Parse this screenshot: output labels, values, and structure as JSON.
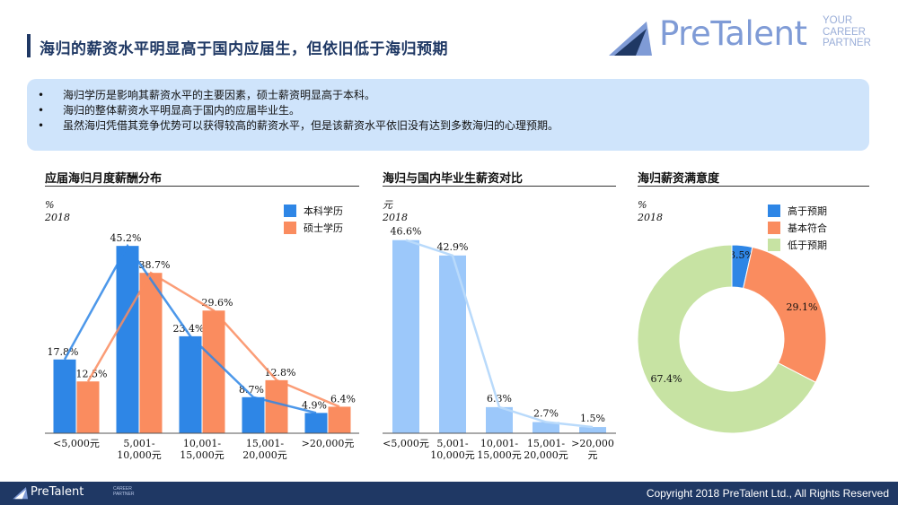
{
  "header": {
    "title": "海归的薪资水平明显高于国内应届生，但依旧低于海归预期",
    "logo_text": "PreTalent",
    "logo_tagline": [
      "YOUR",
      "CAREER",
      "PARTNER"
    ]
  },
  "summary": {
    "bullets": [
      "海归学历是影响其薪资水平的主要因素，硕士薪资明显高于本科。",
      "海归的整体薪资水平明显高于国内的应届毕业生。",
      "虽然海归凭借其竞争优势可以获得较高的薪资水平，但是该薪资水平依旧没有达到多数海归的心理预期。"
    ]
  },
  "colors": {
    "brand": "#1f3864",
    "logo": "#7f9bd6",
    "summary_bg": "#cfe4fb",
    "bachelor": "#2e86e6",
    "master": "#fa8c5f",
    "domestic_bar": "#9cc8fa",
    "domestic_line": "#b9dafb",
    "donut_high": "#2e86e6",
    "donut_match": "#fa8c5f",
    "donut_low": "#c7e3a3"
  },
  "chart_data": [
    {
      "type": "bar",
      "title": "应届海归月度薪酬分布",
      "unit": "%",
      "year": "2018",
      "categories": [
        "<5,000元",
        "5,001-\n10,000元",
        "10,001-\n15,000元",
        "15,001-\n20,000元",
        ">20,000元"
      ],
      "series": [
        {
          "name": "本科学历",
          "values": [
            17.8,
            45.2,
            23.4,
            8.7,
            4.9
          ],
          "labels": [
            "17.8%",
            "45.2%",
            "23.4%",
            "8.7%",
            "4.9%"
          ],
          "color": "#2e86e6"
        },
        {
          "name": "硕士学历",
          "values": [
            12.5,
            38.7,
            29.6,
            12.8,
            6.4
          ],
          "labels": [
            "12.5%",
            "38.7%",
            "29.6%",
            "12.8%",
            "6.4%"
          ],
          "color": "#fa8c5f"
        }
      ],
      "overlay": "line",
      "ylim": [
        0,
        50
      ],
      "legend": "top-right",
      "grid": false
    },
    {
      "type": "bar",
      "title": "海归与国内毕业生薪资对比",
      "unit": "元",
      "year": "2018",
      "categories": [
        "<5,000元",
        "5,001-\n10,000元",
        "10,001-\n15,000元",
        "15,001-\n20,000元",
        ">20,000\n元"
      ],
      "values": [
        46.6,
        42.9,
        6.3,
        2.7,
        1.5
      ],
      "labels": [
        "46.6%",
        "42.9%",
        "6.3%",
        "2.7%",
        "1.5%"
      ],
      "overlay": "line",
      "ylim": [
        0,
        50
      ],
      "grid": false
    },
    {
      "type": "pie",
      "donut": true,
      "title": "海归薪资满意度",
      "unit": "%",
      "year": "2018",
      "slices": [
        {
          "name": "高于预期",
          "value": 3.5,
          "label": "3.5%",
          "color": "#2e86e6"
        },
        {
          "name": "基本符合",
          "value": 29.1,
          "label": "29.1%",
          "color": "#fa8c5f"
        },
        {
          "name": "低于预期",
          "value": 67.4,
          "label": "67.4%",
          "color": "#c7e3a3"
        }
      ],
      "legend": "top-right"
    }
  ],
  "footer": {
    "logo_text": "PreTalent",
    "logo_tagline": [
      "CAREER",
      "PARTNER"
    ],
    "copyright": "Copyright 2018 PreTalent Ltd., All Rights Reserved"
  }
}
